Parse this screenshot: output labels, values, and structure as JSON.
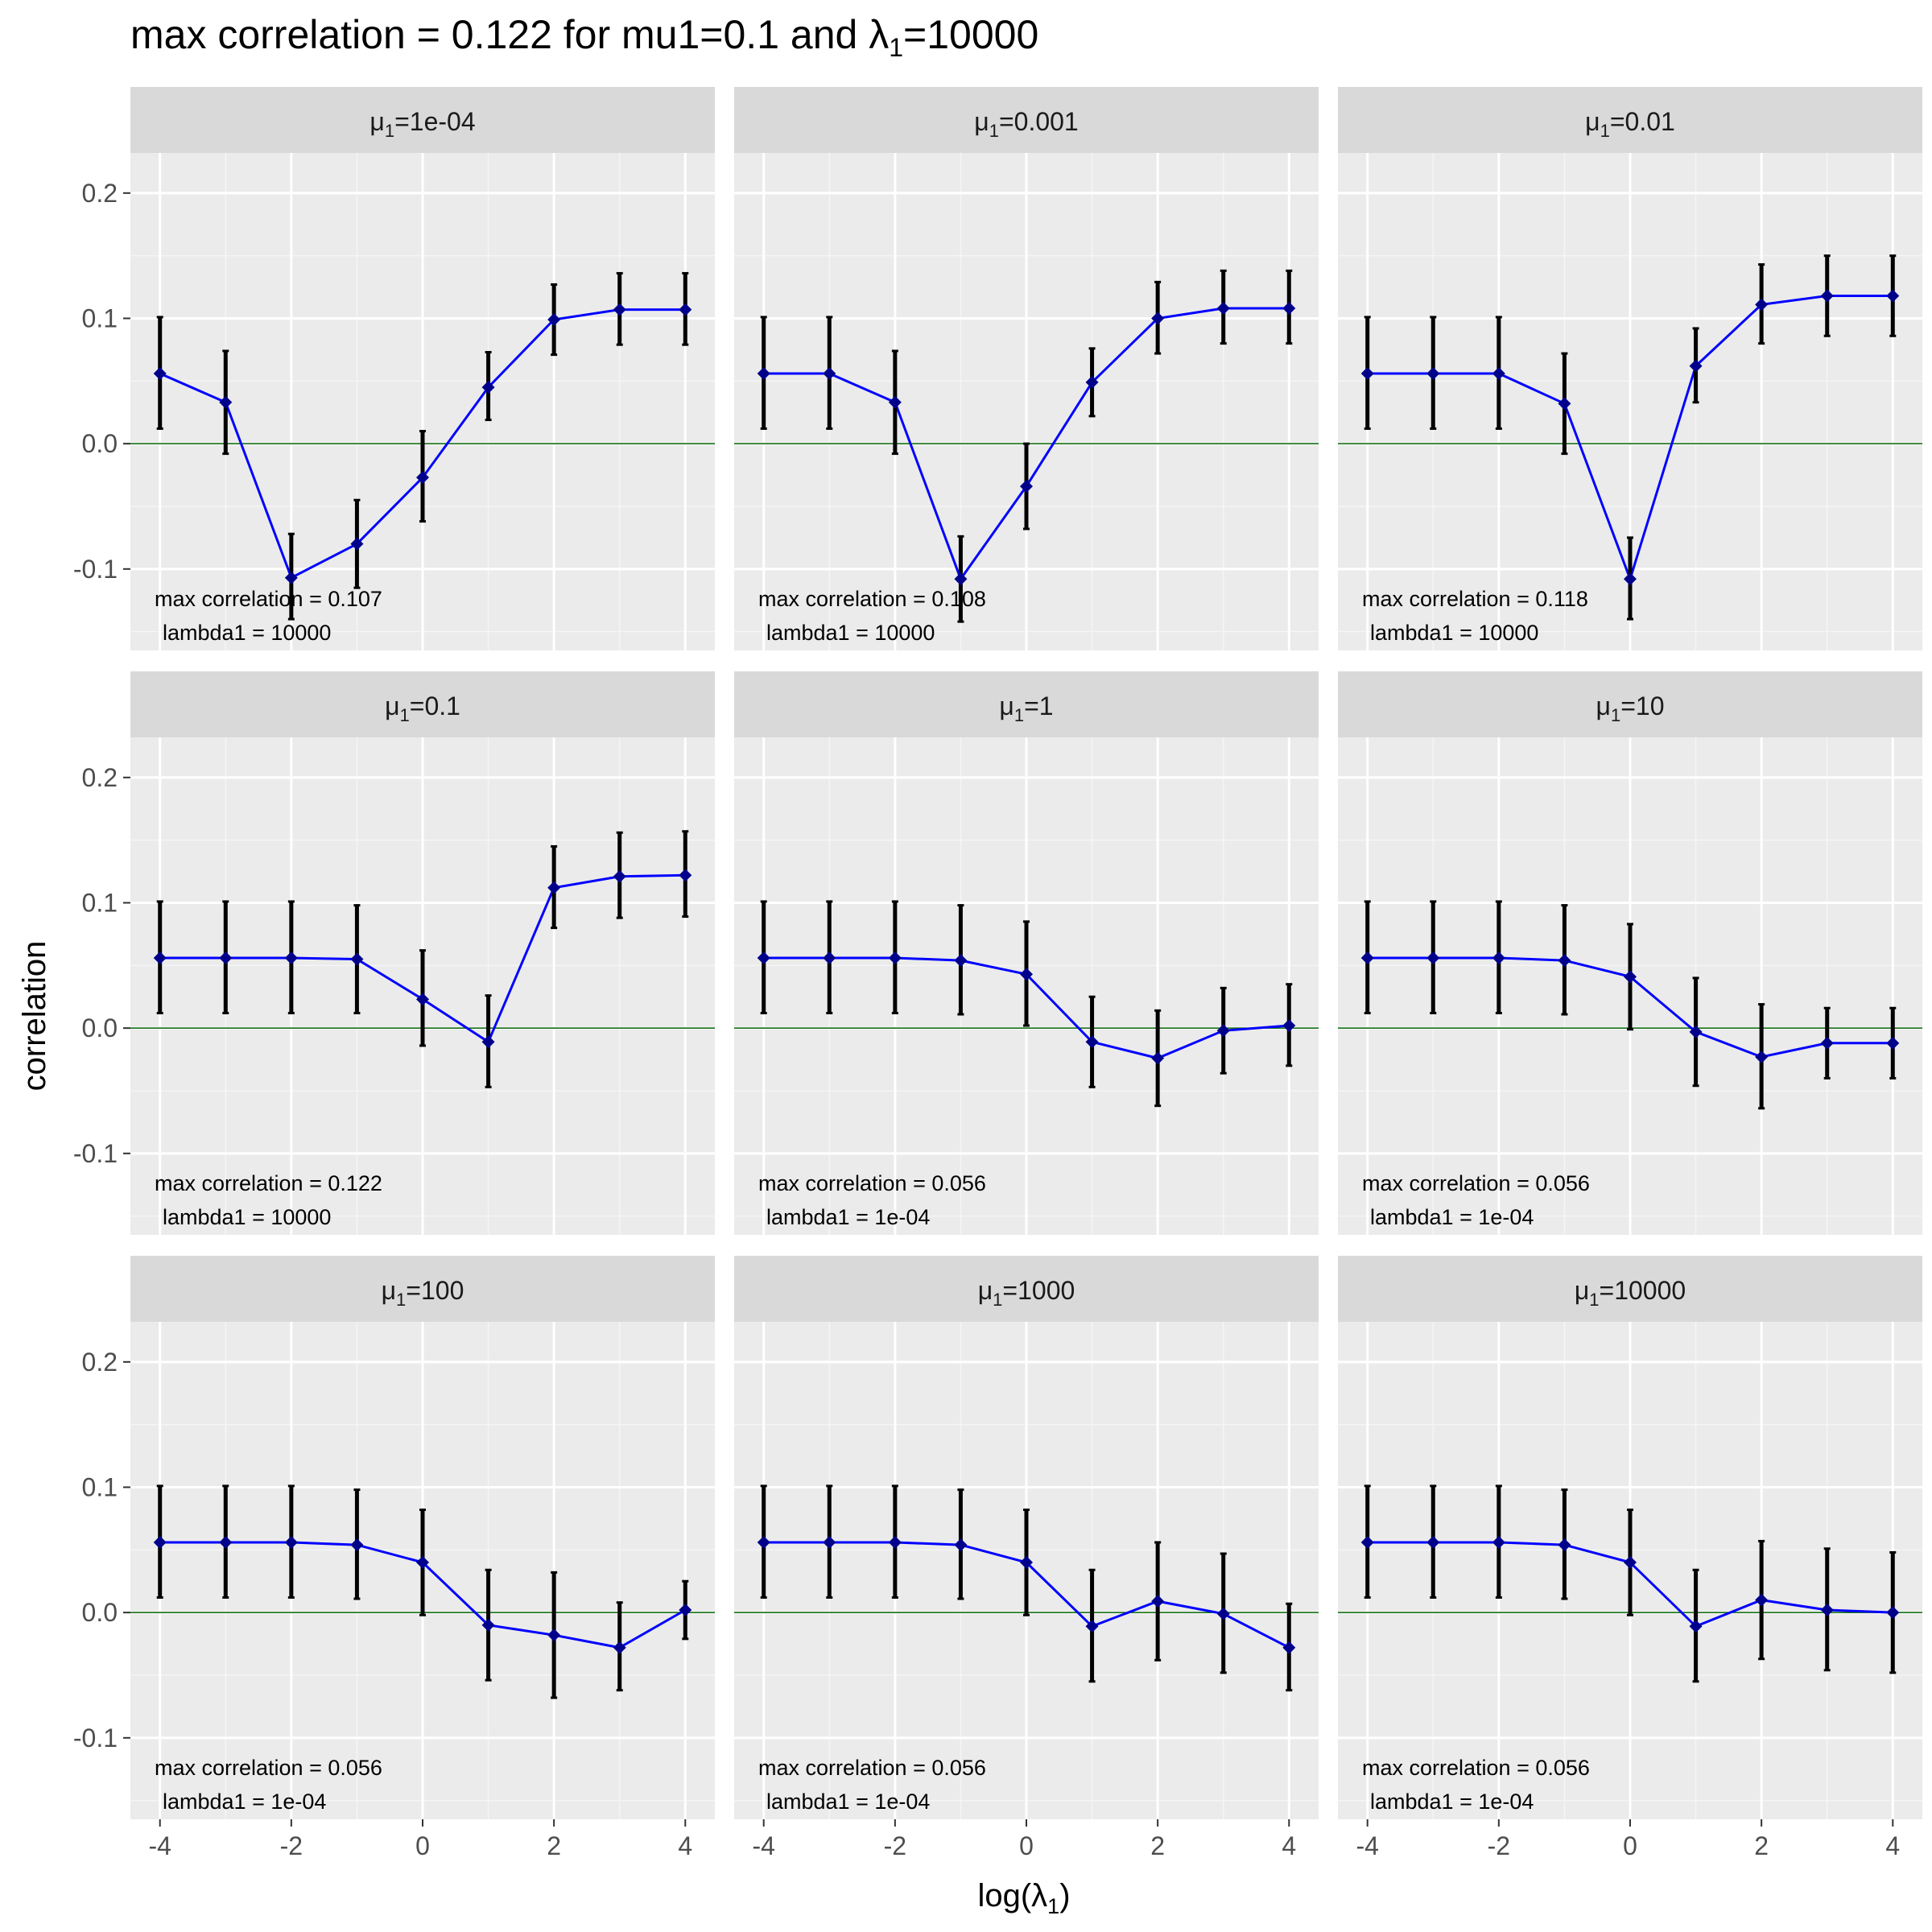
{
  "title": {
    "pre": "max correlation = 0.122  for  mu1=0.1  and  ",
    "sym": "λ",
    "sub": "1",
    "post": "=10000"
  },
  "axes": {
    "ylabel": "correlation",
    "xlabel_pre": "log(",
    "xlabel_sym": "λ",
    "xlabel_sub": "1",
    "xlabel_post": ")",
    "xticks": [
      -4,
      -2,
      0,
      2,
      4
    ],
    "yticks": [
      -0.1,
      0.0,
      0.1,
      0.2
    ],
    "ytick_labels": [
      "-0.1",
      "0.0",
      "0.1",
      "0.2"
    ],
    "xlim": [
      -4.45,
      4.45
    ],
    "ylim": [
      -0.165,
      0.232
    ]
  },
  "strip_symbol": "μ",
  "strip_sub": "1",
  "annotation_prefix": "max correlation = ",
  "annotation_lambda_prefix": "lambda1 = ",
  "colors": {
    "panel_bg": "#EBEBEB",
    "strip_bg": "#D9D9D9",
    "grid_major": "#FFFFFF",
    "grid_minor": "#F5F5F5",
    "line": "#0000FF",
    "point": "#00008B",
    "errorbar": "#000000",
    "hline": "#006400",
    "tick_text": "#4D4D4D",
    "strip_text": "#1A1A1A"
  },
  "chart_data": {
    "type": "line",
    "x": [
      -4,
      -3,
      -2,
      -1,
      0,
      1,
      2,
      3,
      4
    ],
    "panels": [
      {
        "mu": "1e-04",
        "y": [
          0.056,
          0.033,
          -0.107,
          -0.08,
          -0.027,
          0.045,
          0.099,
          0.107,
          0.107
        ],
        "lo": [
          0.012,
          -0.008,
          -0.14,
          -0.115,
          -0.062,
          0.019,
          0.071,
          0.079,
          0.079
        ],
        "hi": [
          0.101,
          0.074,
          -0.072,
          -0.045,
          0.01,
          0.073,
          0.127,
          0.136,
          0.136
        ],
        "max_corr": "0.107",
        "lambda1": "10000"
      },
      {
        "mu": "0.001",
        "y": [
          0.056,
          0.056,
          0.033,
          -0.108,
          -0.034,
          0.049,
          0.1,
          0.108,
          0.108
        ],
        "lo": [
          0.012,
          0.012,
          -0.008,
          -0.142,
          -0.068,
          0.022,
          0.072,
          0.08,
          0.08
        ],
        "hi": [
          0.101,
          0.101,
          0.074,
          -0.074,
          0.0,
          0.076,
          0.129,
          0.138,
          0.138
        ],
        "max_corr": "0.108",
        "lambda1": "10000"
      },
      {
        "mu": "0.01",
        "y": [
          0.056,
          0.056,
          0.056,
          0.032,
          -0.108,
          0.062,
          0.111,
          0.118,
          0.118
        ],
        "lo": [
          0.012,
          0.012,
          0.012,
          -0.008,
          -0.14,
          0.033,
          0.08,
          0.086,
          0.086
        ],
        "hi": [
          0.101,
          0.101,
          0.101,
          0.072,
          -0.075,
          0.092,
          0.143,
          0.15,
          0.15
        ],
        "max_corr": "0.118",
        "lambda1": "10000"
      },
      {
        "mu": "0.1",
        "y": [
          0.056,
          0.056,
          0.056,
          0.055,
          0.023,
          -0.011,
          0.112,
          0.121,
          0.122
        ],
        "lo": [
          0.012,
          0.012,
          0.012,
          0.012,
          -0.014,
          -0.047,
          0.08,
          0.088,
          0.089
        ],
        "hi": [
          0.101,
          0.101,
          0.101,
          0.098,
          0.062,
          0.026,
          0.145,
          0.156,
          0.157
        ],
        "max_corr": "0.122",
        "lambda1": "10000"
      },
      {
        "mu": "1",
        "y": [
          0.056,
          0.056,
          0.056,
          0.054,
          0.043,
          -0.011,
          -0.024,
          -0.002,
          0.002
        ],
        "lo": [
          0.012,
          0.012,
          0.012,
          0.011,
          0.002,
          -0.047,
          -0.062,
          -0.036,
          -0.03
        ],
        "hi": [
          0.101,
          0.101,
          0.101,
          0.098,
          0.085,
          0.025,
          0.014,
          0.032,
          0.035
        ],
        "max_corr": "0.056",
        "lambda1": "1e-04"
      },
      {
        "mu": "10",
        "y": [
          0.056,
          0.056,
          0.056,
          0.054,
          0.041,
          -0.003,
          -0.023,
          -0.012,
          -0.012
        ],
        "lo": [
          0.012,
          0.012,
          0.012,
          0.011,
          -0.001,
          -0.046,
          -0.064,
          -0.04,
          -0.04
        ],
        "hi": [
          0.101,
          0.101,
          0.101,
          0.098,
          0.083,
          0.04,
          0.019,
          0.016,
          0.016
        ],
        "max_corr": "0.056",
        "lambda1": "1e-04"
      },
      {
        "mu": "100",
        "y": [
          0.056,
          0.056,
          0.056,
          0.054,
          0.04,
          -0.01,
          -0.018,
          -0.028,
          0.002
        ],
        "lo": [
          0.012,
          0.012,
          0.012,
          0.011,
          -0.002,
          -0.054,
          -0.068,
          -0.062,
          -0.021
        ],
        "hi": [
          0.101,
          0.101,
          0.101,
          0.098,
          0.082,
          0.034,
          0.032,
          0.008,
          0.025
        ],
        "max_corr": "0.056",
        "lambda1": "1e-04"
      },
      {
        "mu": "1000",
        "y": [
          0.056,
          0.056,
          0.056,
          0.054,
          0.04,
          -0.011,
          0.009,
          -0.001,
          -0.028
        ],
        "lo": [
          0.012,
          0.012,
          0.012,
          0.011,
          -0.002,
          -0.055,
          -0.038,
          -0.048,
          -0.062
        ],
        "hi": [
          0.101,
          0.101,
          0.101,
          0.098,
          0.082,
          0.034,
          0.056,
          0.047,
          0.007
        ],
        "max_corr": "0.056",
        "lambda1": "1e-04"
      },
      {
        "mu": "10000",
        "y": [
          0.056,
          0.056,
          0.056,
          0.054,
          0.04,
          -0.011,
          0.01,
          0.002,
          -0.0
        ],
        "lo": [
          0.012,
          0.012,
          0.012,
          0.011,
          -0.002,
          -0.055,
          -0.037,
          -0.046,
          -0.048
        ],
        "hi": [
          0.101,
          0.101,
          0.101,
          0.098,
          0.082,
          0.034,
          0.057,
          0.051,
          0.048
        ],
        "max_corr": "0.056",
        "lambda1": "1e-04"
      }
    ]
  }
}
